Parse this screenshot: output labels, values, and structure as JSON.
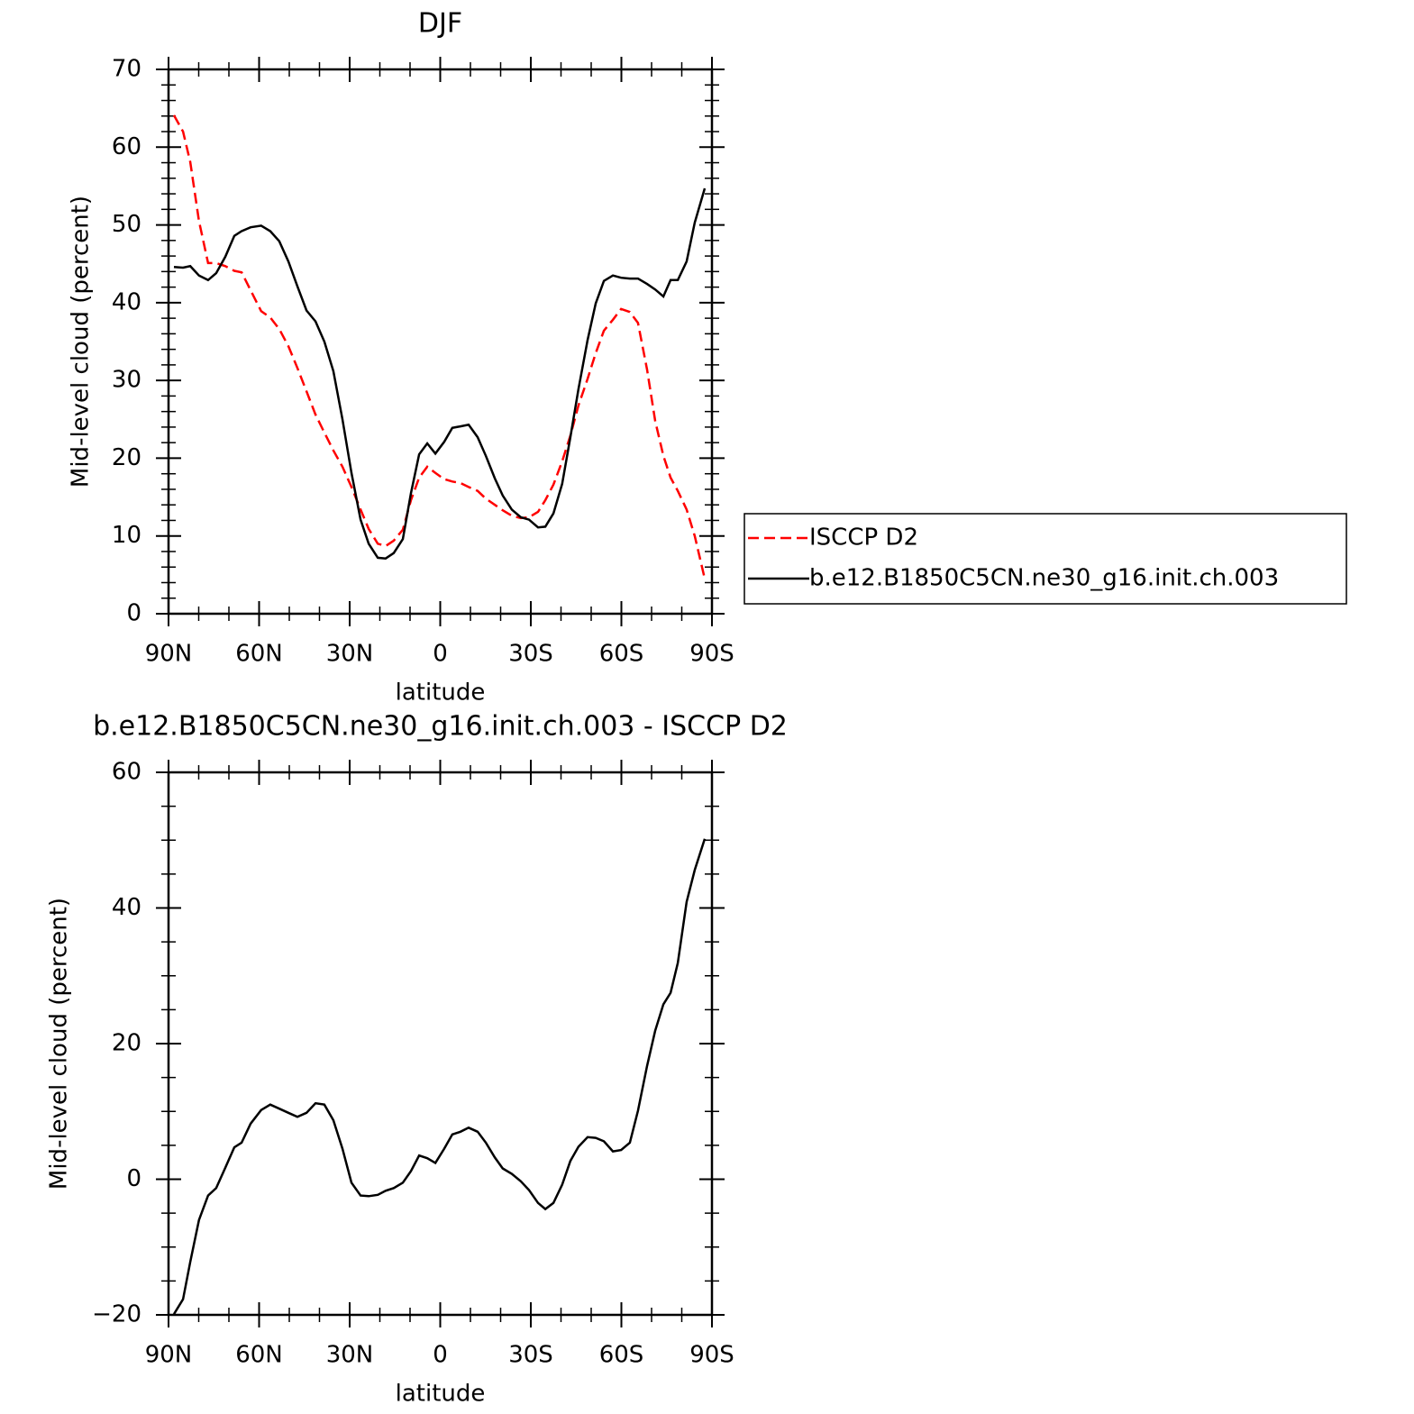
{
  "chart_data": [
    {
      "type": "line",
      "title": "DJF",
      "xlabel": "latitude",
      "ylabel": "Mid-level cloud (percent)",
      "xlim": [
        90,
        -90
      ],
      "xticks": [
        {
          "value": 90,
          "label": "90N"
        },
        {
          "value": 60,
          "label": "60N"
        },
        {
          "value": 30,
          "label": "30N"
        },
        0,
        {
          "value": -30,
          "label": "30S"
        },
        {
          "value": -60,
          "label": "60S"
        },
        {
          "value": -90,
          "label": "90S"
        }
      ],
      "ylim": [
        0,
        70
      ],
      "yticks": [
        0,
        10,
        20,
        30,
        40,
        50,
        60,
        70
      ],
      "legend": "right",
      "x": [
        88.2,
        85.2,
        82.8,
        79.9,
        76.9,
        74.2,
        71.2,
        68.2,
        65.8,
        62.8,
        59.3,
        56.3,
        53.3,
        50.3,
        47.3,
        44.3,
        41.3,
        38.4,
        35.4,
        32.4,
        29.4,
        26.4,
        23.7,
        20.7,
        18.1,
        15.4,
        12.4,
        9.7,
        7.0,
        4.3,
        1.6,
        -1.3,
        -4.0,
        -6.7,
        -9.4,
        -12.4,
        -15.1,
        -18.1,
        -20.7,
        -23.7,
        -26.7,
        -29.4,
        -32.4,
        -34.8,
        -37.5,
        -40.4,
        -43.1,
        -45.8,
        -48.8,
        -51.5,
        -54.2,
        -57.2,
        -59.9,
        -62.8,
        -65.5,
        -68.5,
        -71.2,
        -73.9,
        -76.3,
        -78.7,
        -81.6,
        -84.3,
        -87.6
      ],
      "series": [
        {
          "name": "ISCCP D2",
          "color": "#ff0000",
          "dash": "dashed",
          "values": [
            64.1,
            62.0,
            58.1,
            50.5,
            45.1,
            45.1,
            44.7,
            44.1,
            43.9,
            41.6,
            38.9,
            38.1,
            36.6,
            34.4,
            31.6,
            28.6,
            25.6,
            23.3,
            21.0,
            18.9,
            16.3,
            13.4,
            10.9,
            9.0,
            8.7,
            9.4,
            10.8,
            14.6,
            17.5,
            18.9,
            18.1,
            17.3,
            17.0,
            16.8,
            16.3,
            15.8,
            14.8,
            14.0,
            13.3,
            12.6,
            12.3,
            12.4,
            13.1,
            14.6,
            16.6,
            19.6,
            22.9,
            26.8,
            30.2,
            33.5,
            36.4,
            37.8,
            39.2,
            38.8,
            37.4,
            31.4,
            24.8,
            20.3,
            17.5,
            15.8,
            13.4,
            10.0,
            4.5
          ]
        },
        {
          "name": "b.e12.B1850C5CN.ne30_g16.init.ch.003",
          "color": "#000000",
          "dash": "solid",
          "values": [
            44.6,
            44.5,
            44.7,
            43.5,
            42.9,
            43.8,
            45.9,
            48.6,
            49.2,
            49.7,
            49.9,
            49.2,
            47.9,
            45.3,
            42.1,
            39.0,
            37.6,
            35.0,
            31.2,
            25.0,
            18.1,
            12.1,
            9.0,
            7.2,
            7.1,
            7.8,
            9.6,
            15.5,
            20.5,
            21.9,
            20.6,
            22.1,
            23.9,
            24.1,
            24.3,
            22.7,
            20.3,
            17.4,
            15.2,
            13.4,
            12.4,
            12.1,
            11.1,
            11.2,
            12.9,
            16.7,
            22.7,
            28.9,
            35.2,
            39.9,
            42.8,
            43.5,
            43.2,
            43.1,
            43.1,
            42.4,
            41.7,
            40.8,
            42.9,
            42.9,
            45.3,
            50.3,
            54.7
          ]
        }
      ]
    },
    {
      "type": "line",
      "title": "b.e12.B1850C5CN.ne30_g16.init.ch.003 - ISCCP D2",
      "xlabel": "latitude",
      "ylabel": "Mid-level cloud (percent)",
      "xlim": [
        90,
        -90
      ],
      "xticks": [
        {
          "value": 90,
          "label": "90N"
        },
        {
          "value": 60,
          "label": "60N"
        },
        {
          "value": 30,
          "label": "30N"
        },
        0,
        {
          "value": -30,
          "label": "30S"
        },
        {
          "value": -60,
          "label": "60S"
        },
        {
          "value": -90,
          "label": "90S"
        }
      ],
      "ylim": [
        -20,
        60
      ],
      "yticks": [
        {
          "value": -20,
          "label": "−20"
        },
        0,
        20,
        40,
        60
      ],
      "color": "#000000",
      "x": [
        88.2,
        85.2,
        82.8,
        79.9,
        76.9,
        74.2,
        71.2,
        68.2,
        65.8,
        62.8,
        59.3,
        56.3,
        53.3,
        50.3,
        47.3,
        44.3,
        41.3,
        38.4,
        35.4,
        32.4,
        29.4,
        26.4,
        23.7,
        20.7,
        18.1,
        15.4,
        12.4,
        9.7,
        7.0,
        4.3,
        1.6,
        -1.3,
        -4.0,
        -6.7,
        -9.4,
        -12.4,
        -15.1,
        -18.1,
        -20.7,
        -23.7,
        -26.7,
        -29.4,
        -32.4,
        -34.8,
        -37.5,
        -40.4,
        -43.1,
        -45.8,
        -48.8,
        -51.5,
        -54.2,
        -57.2,
        -59.9,
        -62.8,
        -65.5,
        -68.5,
        -71.2,
        -73.9,
        -76.3,
        -78.7,
        -81.6,
        -84.3,
        -87.6
      ],
      "values": [
        -19.9,
        -17.7,
        -12.2,
        -6.0,
        -2.4,
        -1.3,
        1.7,
        4.7,
        5.4,
        8.2,
        10.2,
        11.0,
        10.4,
        9.8,
        9.2,
        9.8,
        11.2,
        11.0,
        8.7,
        4.5,
        -0.5,
        -2.4,
        -2.5,
        -2.3,
        -1.7,
        -1.3,
        -0.5,
        1.2,
        3.5,
        3.1,
        2.4,
        4.5,
        6.6,
        7.0,
        7.6,
        7.0,
        5.4,
        3.2,
        1.6,
        0.8,
        -0.3,
        -1.6,
        -3.5,
        -4.4,
        -3.5,
        -0.8,
        2.7,
        4.8,
        6.2,
        6.1,
        5.6,
        4.1,
        4.3,
        5.4,
        10.1,
        16.7,
        21.9,
        25.8,
        27.5,
        31.9,
        40.9,
        45.6,
        50.2
      ]
    }
  ]
}
